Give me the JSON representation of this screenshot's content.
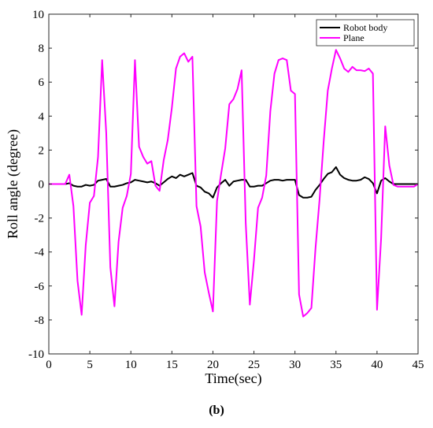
{
  "chart_data": {
    "type": "line",
    "title": "",
    "xlabel": "Time(sec)",
    "ylabel": "Roll angle (degree)",
    "xlim": [
      0,
      45
    ],
    "ylim": [
      -10,
      10
    ],
    "xticks": [
      0,
      5,
      10,
      15,
      20,
      25,
      30,
      35,
      40,
      45
    ],
    "yticks": [
      -10,
      -8,
      -6,
      -4,
      -2,
      0,
      2,
      4,
      6,
      8,
      10
    ],
    "grid": false,
    "legend_position": "top-right",
    "series": [
      {
        "name": "Robot body",
        "color": "#000000",
        "x": [
          0,
          2,
          2.5,
          3,
          3.5,
          4,
          4.5,
          5,
          5.5,
          6,
          6.5,
          7,
          7.5,
          8,
          8.5,
          9,
          9.5,
          10,
          10.5,
          11,
          11.5,
          12,
          12.5,
          13,
          13.5,
          14,
          14.5,
          15,
          15.5,
          16,
          16.5,
          17,
          17.5,
          18,
          18.5,
          19,
          19.5,
          20,
          20.5,
          21,
          21.5,
          22,
          22.5,
          23,
          23.5,
          24,
          24.5,
          25,
          25.5,
          26,
          26.5,
          27,
          27.5,
          28,
          28.5,
          29,
          29.5,
          30,
          30.5,
          31,
          31.5,
          32,
          32.5,
          33,
          33.5,
          34,
          34.5,
          35,
          35.5,
          36,
          36.5,
          37,
          37.5,
          38,
          38.5,
          39,
          39.5,
          40,
          40.5,
          41,
          41.5,
          42,
          42.5,
          43,
          43.5,
          44,
          44.5,
          45
        ],
        "y": [
          0,
          0,
          0.05,
          -0.1,
          -0.15,
          -0.15,
          -0.05,
          -0.1,
          -0.05,
          0.2,
          0.25,
          0.3,
          -0.15,
          -0.15,
          -0.1,
          -0.05,
          0.05,
          0.1,
          0.25,
          0.2,
          0.15,
          0.1,
          0.15,
          0.05,
          -0.1,
          0.1,
          0.3,
          0.45,
          0.35,
          0.55,
          0.45,
          0.55,
          0.65,
          -0.1,
          -0.2,
          -0.45,
          -0.55,
          -0.8,
          -0.2,
          0.05,
          0.25,
          -0.1,
          0.15,
          0.2,
          0.25,
          0.25,
          -0.15,
          -0.15,
          -0.1,
          -0.1,
          0.05,
          0.2,
          0.25,
          0.25,
          0.2,
          0.25,
          0.25,
          0.25,
          -0.65,
          -0.8,
          -0.8,
          -0.75,
          -0.35,
          -0.05,
          0.3,
          0.6,
          0.7,
          1.0,
          0.55,
          0.35,
          0.25,
          0.2,
          0.2,
          0.25,
          0.4,
          0.3,
          0.05,
          -0.55,
          0.2,
          0.35,
          0.15,
          0,
          0,
          0,
          0,
          0,
          0,
          0
        ]
      },
      {
        "name": "Plane",
        "color": "#ff00ff",
        "x": [
          0,
          2,
          2.5,
          3,
          3.5,
          4,
          4.5,
          5,
          5.5,
          6,
          6.5,
          7,
          7.5,
          8,
          8.5,
          9,
          9.5,
          10,
          10.5,
          11,
          11.5,
          12,
          12.5,
          13,
          13.5,
          14,
          14.5,
          15,
          15.5,
          16,
          16.5,
          17,
          17.5,
          18,
          18.5,
          19,
          19.5,
          20,
          20.5,
          21,
          21.5,
          22,
          22.5,
          23,
          23.5,
          24,
          24.5,
          25,
          25.5,
          26,
          26.5,
          27,
          27.5,
          28,
          28.5,
          29,
          29.5,
          30,
          30.5,
          31,
          31.5,
          32,
          32.5,
          33,
          33.5,
          34,
          34.5,
          35,
          35.5,
          36,
          36.5,
          37,
          37.5,
          38,
          38.5,
          39,
          39.5,
          40,
          40.5,
          41,
          41.5,
          42,
          42.5,
          43,
          43.5,
          44,
          44.5,
          45
        ],
        "y": [
          0,
          0,
          0.55,
          -1.3,
          -5.7,
          -7.7,
          -3.6,
          -1.1,
          -0.7,
          1.6,
          7.3,
          3.0,
          -4.9,
          -7.2,
          -3.4,
          -1.4,
          -0.7,
          0.6,
          7.3,
          2.2,
          1.6,
          1.2,
          1.35,
          -0.1,
          -0.4,
          1.4,
          2.6,
          4.5,
          6.8,
          7.5,
          7.7,
          7.2,
          7.5,
          -1.3,
          -2.5,
          -5.2,
          -6.4,
          -7.5,
          -1.0,
          0.6,
          2.1,
          4.7,
          5.0,
          5.6,
          6.7,
          -2.3,
          -7.1,
          -4.5,
          -1.4,
          -0.8,
          0.5,
          4.3,
          6.5,
          7.3,
          7.4,
          7.3,
          5.5,
          5.3,
          -6.5,
          -7.8,
          -7.6,
          -7.3,
          -3.8,
          -0.9,
          2.5,
          5.5,
          6.8,
          7.9,
          7.4,
          6.8,
          6.6,
          6.9,
          6.7,
          6.7,
          6.65,
          6.8,
          6.5,
          -7.4,
          -3.2,
          3.4,
          1.1,
          -0.05,
          -0.15,
          -0.15,
          -0.15,
          -0.15,
          -0.15,
          0
        ]
      }
    ]
  },
  "caption": "(b)"
}
